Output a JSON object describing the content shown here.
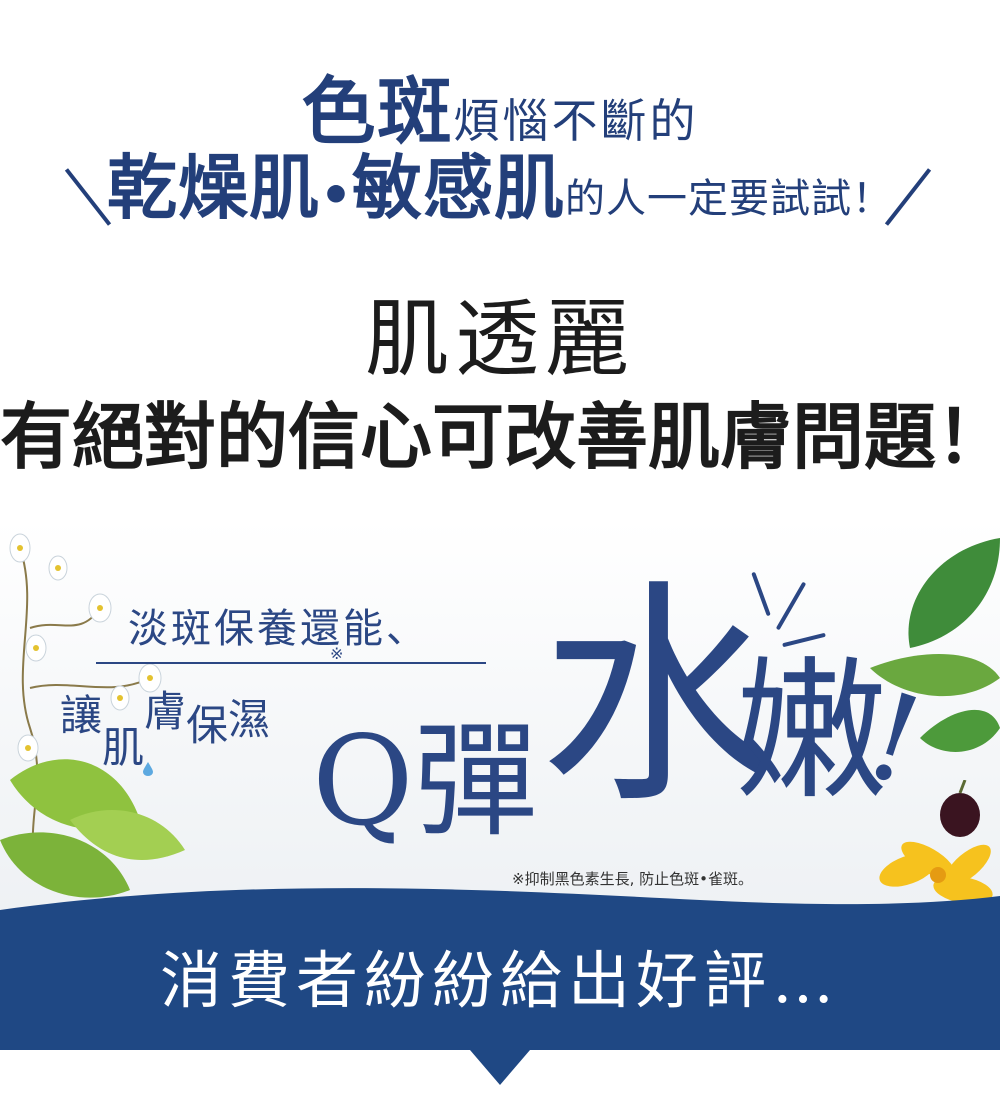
{
  "header": {
    "line1_big": "色斑",
    "line1_small": "煩惱不斷的",
    "line2_big_a": "乾燥肌",
    "line2_dot": "•",
    "line2_big_b": "敏感肌",
    "line2_small": "的人一定要試試！"
  },
  "headline": {
    "brand": "肌透麗",
    "claim": "有絕對的信心可改善肌膚問題！"
  },
  "promo": {
    "line1": "淡斑保養還能、",
    "mark": "※",
    "line2_chars": [
      "讓",
      "肌",
      "膚",
      "保",
      "濕"
    ],
    "q_text": "Q彈",
    "big_char": "水",
    "nen_char": "嫩",
    "exclaim": "!",
    "footnote": "※抑制黑色素生長, 防止色斑•雀斑。"
  },
  "banner": {
    "text": "消費者紛紛給出好評…"
  },
  "colors": {
    "brand_blue": "#233f7a",
    "promo_blue": "#2b4784",
    "banner_blue": "#1f4884",
    "headline_dark": "#1c1c1c"
  }
}
